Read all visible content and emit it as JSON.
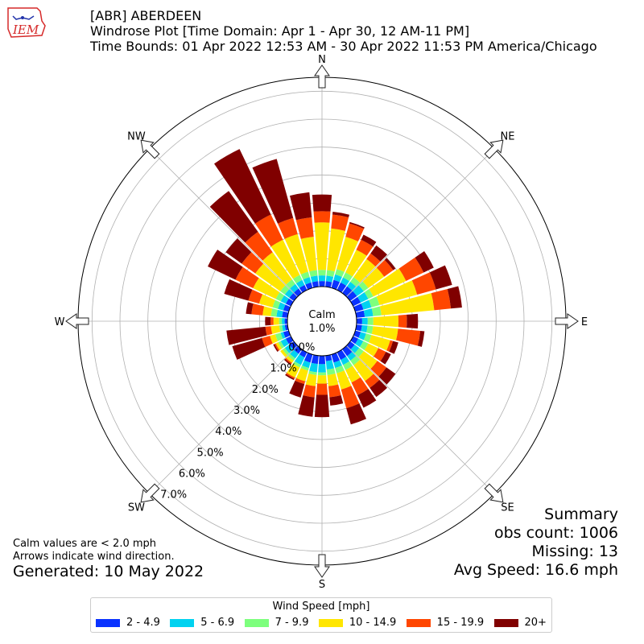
{
  "header": {
    "line1": "[ABR] ABERDEEN",
    "line2": "Windrose Plot [Time Domain: Apr 1 - Apr 30, 12 AM-11 PM]",
    "line3": "Time Bounds: 01 Apr 2022 12:53 AM - 30 Apr 2022 11:53 PM America/Chicago"
  },
  "logo": {
    "text": "IEM",
    "color": "#d62a2a"
  },
  "summary": {
    "title": "Summary",
    "obs": "obs count: 1006",
    "missing": "Missing: 13",
    "avg": "Avg Speed: 16.6 mph"
  },
  "notes": {
    "calm": "Calm values are < 2.0 mph",
    "arrows": "Arrows indicate wind direction."
  },
  "generated": "Generated: 10 May 2022",
  "legend": {
    "title": "Wind Speed [mph]",
    "items": [
      {
        "label": "2 - 4.9",
        "color": "#0a32ff"
      },
      {
        "label": "5 - 6.9",
        "color": "#00d2f0"
      },
      {
        "label": "7 - 9.9",
        "color": "#7dff7d"
      },
      {
        "label": "10 - 14.9",
        "color": "#ffe600"
      },
      {
        "label": "15 - 19.9",
        "color": "#ff4600"
      },
      {
        "label": "20+",
        "color": "#800000"
      }
    ]
  },
  "chart_data": {
    "type": "windrose",
    "calm_label": "Calm",
    "calm_value": "1.0%",
    "calm_percent": 1.0,
    "radial_ticks": [
      "0.0%",
      "1.0%",
      "2.0%",
      "3.0%",
      "4.0%",
      "5.0%",
      "6.0%",
      "7.0%"
    ],
    "radial_max": 7.5,
    "directions": [
      "N",
      "NE",
      "E",
      "SE",
      "S",
      "SW",
      "W",
      "NW"
    ],
    "speed_bins": [
      "2 - 4.9",
      "5 - 6.9",
      "7 - 9.9",
      "10 - 14.9",
      "15 - 19.9",
      "20+"
    ],
    "sectors": [
      {
        "dir": 0,
        "cum": [
          0.2,
          0.4,
          0.6,
          2.3,
          2.7,
          3.3
        ]
      },
      {
        "dir": 10,
        "cum": [
          0.2,
          0.4,
          0.6,
          2.1,
          2.6,
          2.7
        ]
      },
      {
        "dir": 20,
        "cum": [
          0.3,
          0.5,
          0.7,
          1.9,
          2.4,
          2.45
        ]
      },
      {
        "dir": 30,
        "cum": [
          0.3,
          0.5,
          0.7,
          1.6,
          2.0,
          2.2
        ]
      },
      {
        "dir": 40,
        "cum": [
          0.3,
          0.5,
          0.7,
          1.5,
          1.75,
          2.1
        ]
      },
      {
        "dir": 50,
        "cum": [
          0.3,
          0.6,
          0.8,
          1.5,
          1.9,
          2.0
        ]
      },
      {
        "dir": 60,
        "cum": [
          0.3,
          0.6,
          0.8,
          2.1,
          2.8,
          3.2
        ]
      },
      {
        "dir": 70,
        "cum": [
          0.3,
          0.6,
          0.9,
          2.3,
          3.0,
          3.6
        ]
      },
      {
        "dir": 80,
        "cum": [
          0.3,
          0.6,
          0.9,
          2.8,
          3.4,
          3.8
        ]
      },
      {
        "dir": 90,
        "cum": [
          0.2,
          0.4,
          0.6,
          1.5,
          1.8,
          2.2
        ]
      },
      {
        "dir": 100,
        "cum": [
          0.2,
          0.4,
          0.6,
          1.5,
          2.3,
          2.45
        ]
      },
      {
        "dir": 110,
        "cum": [
          0.2,
          0.4,
          0.6,
          1.3,
          1.4,
          1.6
        ]
      },
      {
        "dir": 120,
        "cum": [
          0.2,
          0.4,
          0.6,
          1.0,
          1.3,
          1.5
        ]
      },
      {
        "dir": 130,
        "cum": [
          0.2,
          0.4,
          0.6,
          1.2,
          1.6,
          2.0
        ]
      },
      {
        "dir": 140,
        "cum": [
          0.3,
          0.5,
          0.7,
          1.4,
          1.7,
          2.1
        ]
      },
      {
        "dir": 150,
        "cum": [
          0.3,
          0.5,
          0.7,
          1.2,
          1.7,
          2.2
        ]
      },
      {
        "dir": 160,
        "cum": [
          0.3,
          0.5,
          0.7,
          1.3,
          2.0,
          2.6
        ]
      },
      {
        "dir": 170,
        "cum": [
          0.2,
          0.5,
          0.7,
          1.1,
          1.5,
          1.8
        ]
      },
      {
        "dir": 180,
        "cum": [
          0.3,
          0.6,
          0.7,
          1.0,
          1.4,
          2.2
        ]
      },
      {
        "dir": 190,
        "cum": [
          0.3,
          0.6,
          0.7,
          1.1,
          1.5,
          2.2
        ]
      },
      {
        "dir": 200,
        "cum": [
          0.3,
          0.5,
          0.6,
          1.0,
          1.1,
          1.6
        ]
      },
      {
        "dir": 210,
        "cum": [
          0.2,
          0.5,
          0.6,
          1.0,
          1.05,
          1.1
        ]
      },
      {
        "dir": 220,
        "cum": [
          0.2,
          0.4,
          0.5,
          0.6,
          0.65,
          0.7
        ]
      },
      {
        "dir": 230,
        "cum": [
          0.2,
          0.4,
          0.5,
          0.6,
          0.6,
          0.6
        ]
      },
      {
        "dir": 240,
        "cum": [
          0.2,
          0.4,
          0.5,
          0.6,
          0.65,
          0.7
        ]
      },
      {
        "dir": 250,
        "cum": [
          0.2,
          0.3,
          0.5,
          0.7,
          1.0,
          2.1
        ]
      },
      {
        "dir": 260,
        "cum": [
          0.1,
          0.2,
          0.3,
          0.6,
          0.8,
          2.2
        ]
      },
      {
        "dir": 270,
        "cum": [
          0.1,
          0.2,
          0.3,
          0.5,
          0.6,
          0.8
        ]
      },
      {
        "dir": 280,
        "cum": [
          0.2,
          0.4,
          0.6,
          0.9,
          1.3,
          1.5
        ]
      },
      {
        "dir": 290,
        "cum": [
          0.2,
          0.4,
          0.6,
          1.1,
          1.5,
          2.4
        ]
      },
      {
        "dir": 300,
        "cum": [
          0.2,
          0.4,
          0.6,
          1.5,
          2.2,
          3.3
        ]
      },
      {
        "dir": 310,
        "cum": [
          0.2,
          0.4,
          0.6,
          1.7,
          2.3,
          3.0
        ]
      },
      {
        "dir": 320,
        "cum": [
          0.2,
          0.4,
          0.6,
          1.8,
          2.7,
          4.5
        ]
      },
      {
        "dir": 330,
        "cum": [
          0.2,
          0.4,
          0.6,
          2.0,
          3.0,
          5.6
        ]
      },
      {
        "dir": 340,
        "cum": [
          0.2,
          0.4,
          0.6,
          2.0,
          2.6,
          4.8
        ]
      },
      {
        "dir": 350,
        "cum": [
          0.2,
          0.4,
          0.6,
          1.8,
          2.5,
          3.4
        ]
      }
    ]
  }
}
